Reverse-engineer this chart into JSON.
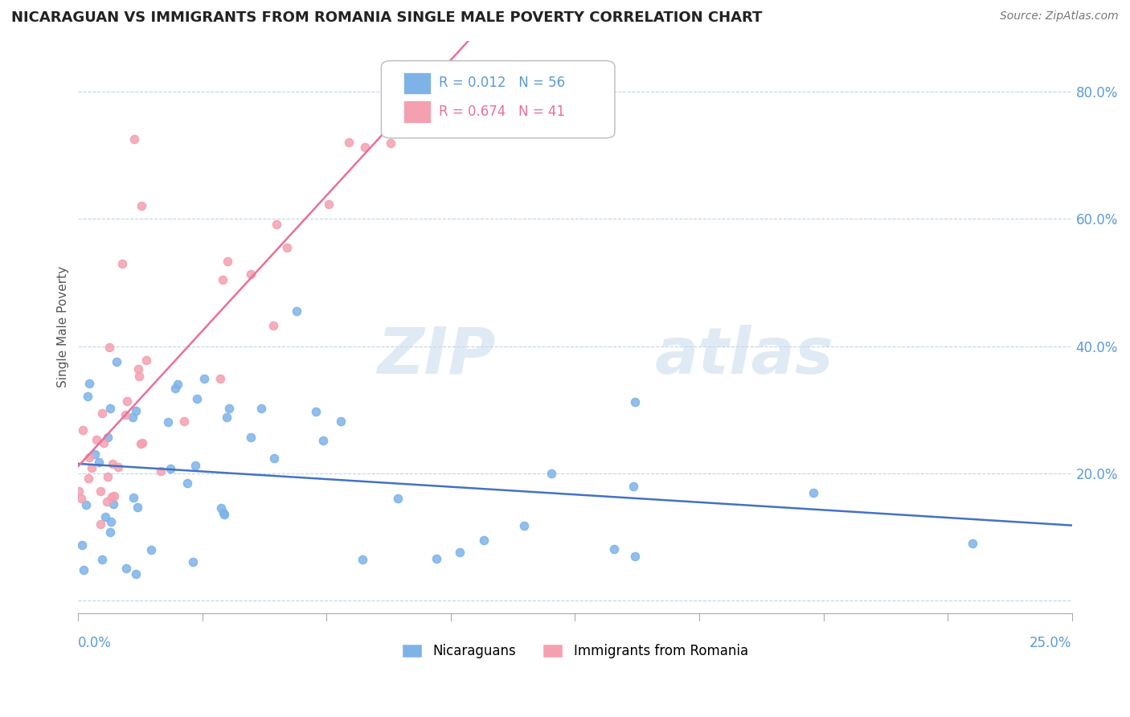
{
  "title": "NICARAGUAN VS IMMIGRANTS FROM ROMANIA SINGLE MALE POVERTY CORRELATION CHART",
  "source": "Source: ZipAtlas.com",
  "ylabel": "Single Male Poverty",
  "xlim": [
    0.0,
    0.25
  ],
  "ylim": [
    -0.02,
    0.88
  ],
  "watermark_zip": "ZIP",
  "watermark_atlas": "atlas",
  "series1_name": "Nicaraguans",
  "series1_color": "#7eb3e8",
  "series1_R": "0.012",
  "series1_N": "56",
  "series2_name": "Immigrants from Romania",
  "series2_color": "#f4a0b0",
  "series2_R": "0.674",
  "series2_N": "41",
  "blue_line_color": "#4472c4",
  "pink_line_color": "#e8709a",
  "axis_color": "#5b9bd5",
  "grid_color": "#c0d4e8",
  "legend_color1": "#5b9bd5",
  "legend_color2": "#e8709a"
}
